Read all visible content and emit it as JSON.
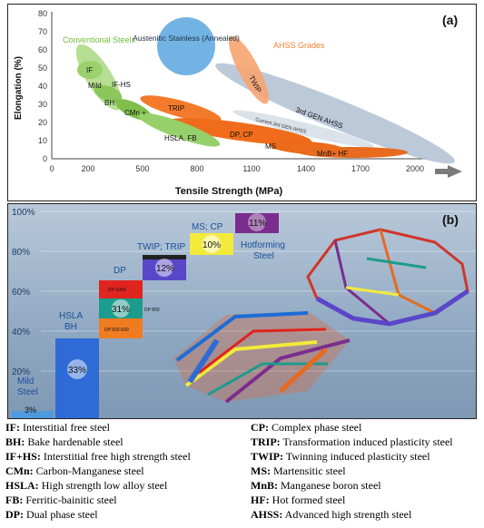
{
  "panel_a": {
    "label": "(a)",
    "ylabel": "Elongation (%)",
    "xlabel": "Tensile Strength (MPa)",
    "x_ticks": [
      "0",
      "200",
      "500",
      "800",
      "1100",
      "1400",
      "1700",
      "2000"
    ],
    "y_ticks": [
      "0",
      "10",
      "20",
      "30",
      "40",
      "50",
      "60",
      "70",
      "80"
    ],
    "groups": {
      "conventional": "Conventional Steels",
      "austenitic": "Austenitic Stainless (Annealed)",
      "ahss": "AHSS Grades"
    },
    "grades": {
      "if": "IF",
      "mild": "Mild",
      "ifhs": "IF-HS",
      "bh": "BH",
      "cmn": "CMn +",
      "hsla": "HSLA, FB",
      "trip": "TRIP",
      "dpcp": "DP, CP",
      "ms": "MS",
      "mnb": "MnB+ HF",
      "twip": "TWIP",
      "gen3": "3rd GEN AHSS",
      "cur3": "Current 3rd GEN AHSS"
    },
    "colors": {
      "conventional": "#8fcd5d",
      "austenitic": "#5aa6de",
      "ahss": "#f07f2f",
      "gen3": "#b0c0d2"
    }
  },
  "panel_b": {
    "label": "(b)",
    "y_ticks": [
      "100%",
      "80%",
      "60%",
      "40%",
      "20%"
    ],
    "steps": {
      "mild": {
        "name": "Mild Steel",
        "pct": "3%"
      },
      "hsla": {
        "name": "HSLA BH",
        "pct": "33%"
      },
      "dp": {
        "name": "DP",
        "pct": "31%",
        "sub1": "DP 1000",
        "sub2": "DP 800",
        "sub3": "DP 500-600"
      },
      "twip": {
        "name": "TWIP; TRIP",
        "pct": "12%"
      },
      "ms": {
        "name": "MS; CP",
        "pct": "10%"
      },
      "hf": {
        "name": "Hotforming Steel",
        "pct": "11%"
      }
    }
  },
  "legend": {
    "left": [
      {
        "abbr": "IF:",
        "text": " Interstitial free steel"
      },
      {
        "abbr": "BH:",
        "text": " Bake hardenable steel"
      },
      {
        "abbr": "IF+HS:",
        "text": " Interstitial free high strength steel"
      },
      {
        "abbr": "CMn:",
        "text": " Carbon-Manganese steel"
      },
      {
        "abbr": "HSLA:",
        "text": " High strength low alloy steel"
      },
      {
        "abbr": "FB:",
        "text": " Ferritic-bainitic steel"
      },
      {
        "abbr": "DP:",
        "text": " Dual phase steel"
      }
    ],
    "right": [
      {
        "abbr": "CP:",
        "text": " Complex phase steel"
      },
      {
        "abbr": "TRIP:",
        "text": " Transformation induced plasticity steel"
      },
      {
        "abbr": "TWIP:",
        "text": " Twinning induced plasticity steel"
      },
      {
        "abbr": "MS:",
        "text": " Martensitic steel"
      },
      {
        "abbr": "MnB:",
        "text": " Manganese boron steel"
      },
      {
        "abbr": "HF:",
        "text": " Hot formed steel"
      },
      {
        "abbr": "AHSS:",
        "text": " Advanced high strength steel"
      }
    ]
  }
}
